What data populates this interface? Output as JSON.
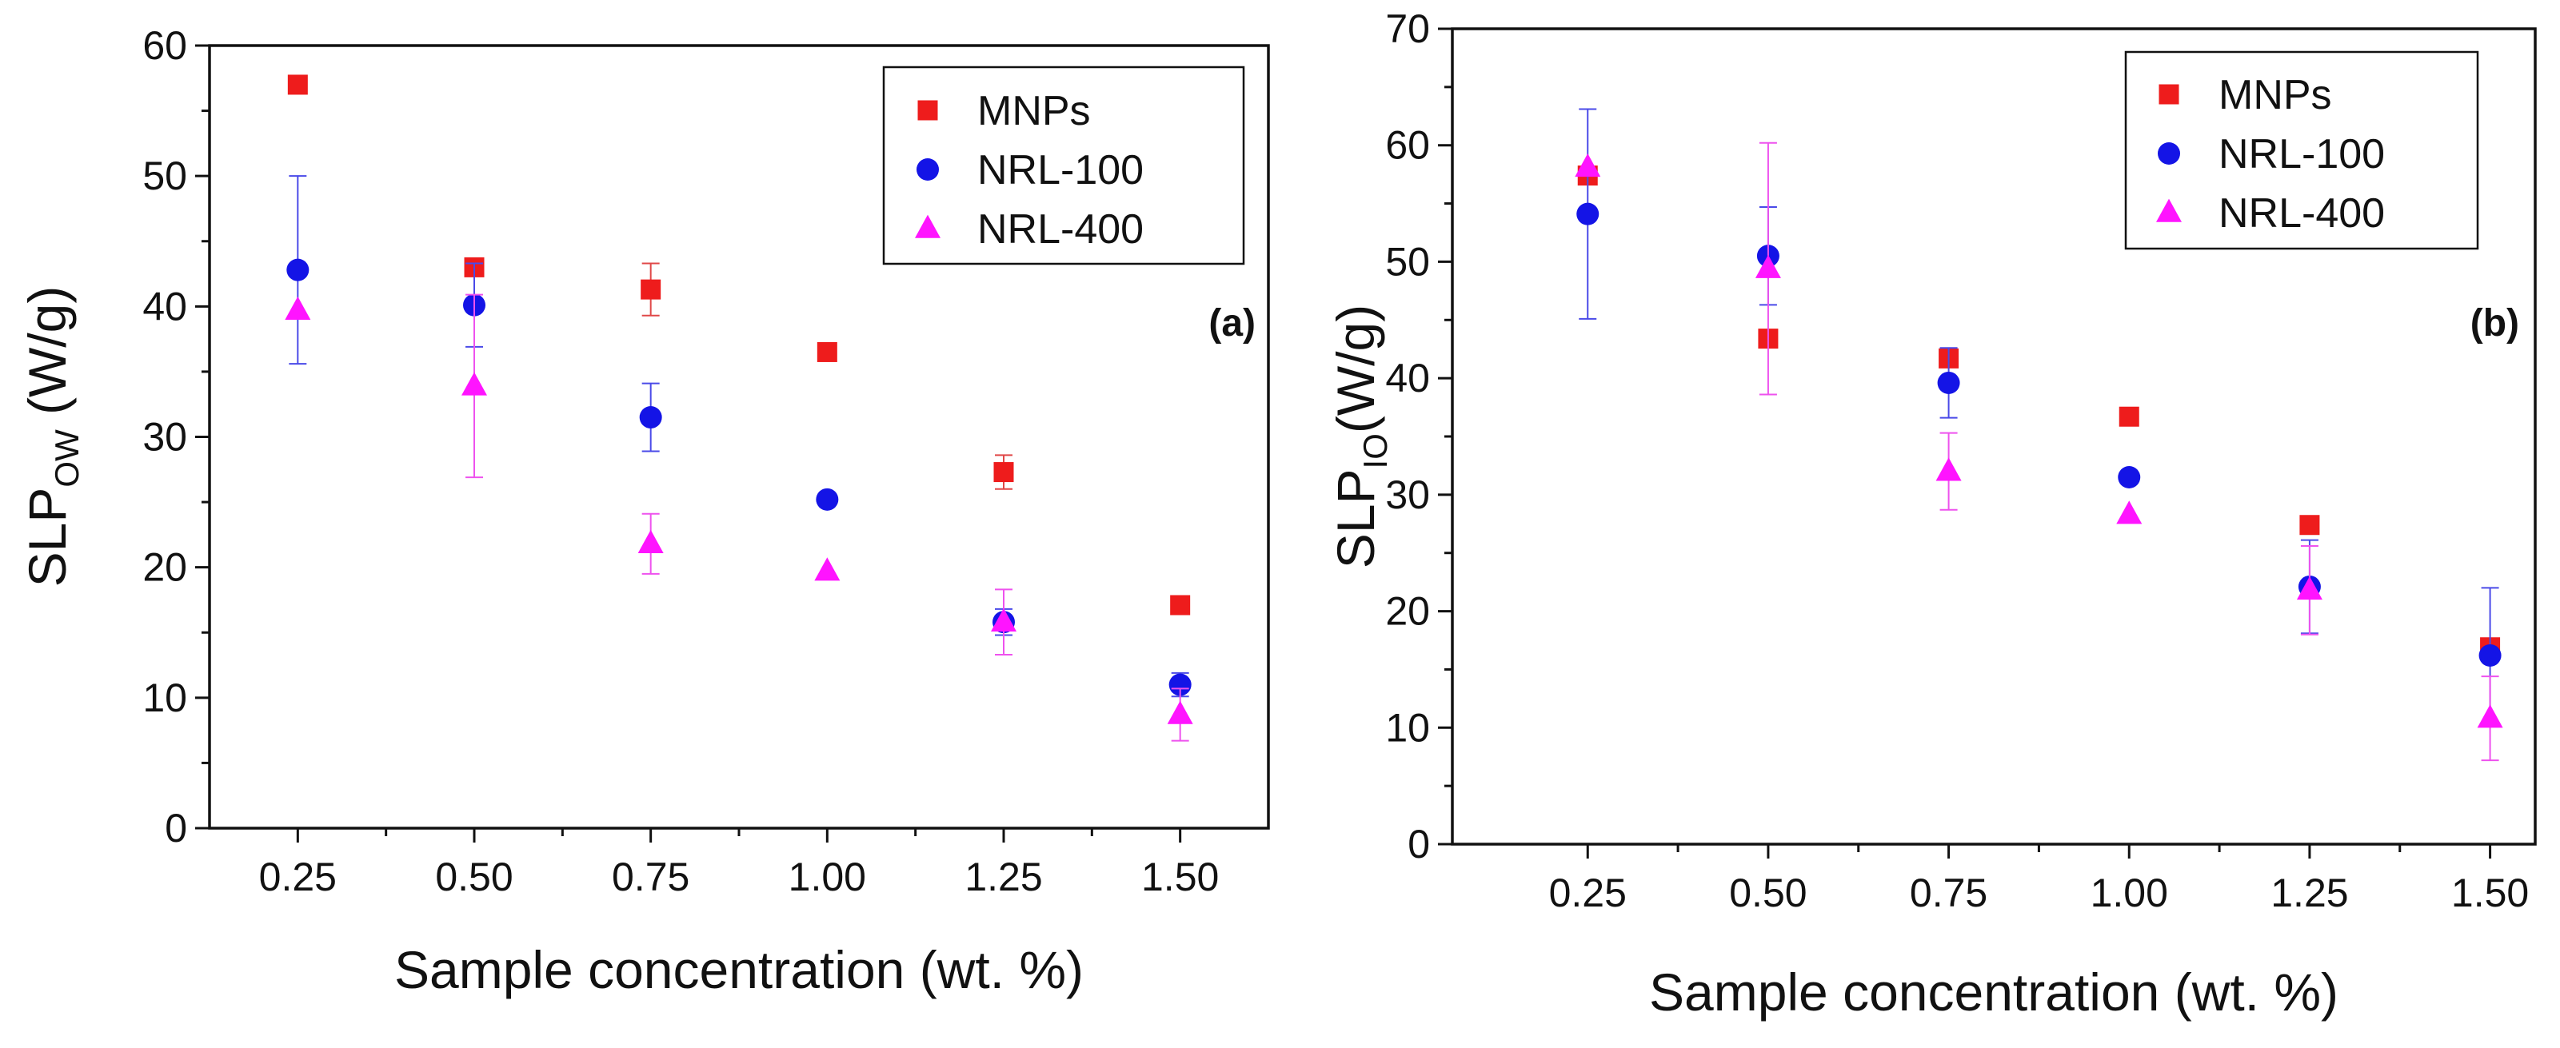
{
  "colors": {
    "MNPs": "#ee1c1c",
    "NRL-100": "#1414e6",
    "NRL-400": "#ff14ff",
    "errbar_MNPs": "#e04848",
    "errbar_NRL-100": "#4a4ae8",
    "errbar_NRL-400": "#ee52ee"
  },
  "chart_data": [
    {
      "type": "scatter",
      "panel_label": "(a)",
      "ylabel_main": "SLP",
      "ylabel_sub": "OW",
      "ylabel_unit": " (W/g)",
      "xlabel": "Sample concentration (wt. %)",
      "xlim": [
        0.125,
        1.625
      ],
      "ylim": [
        0,
        60
      ],
      "xticks": [
        0.25,
        0.5,
        0.75,
        1.0,
        1.25,
        1.5
      ],
      "xtick_labels": [
        "0.25",
        "0.50",
        "0.75",
        "1.00",
        "1.25",
        "1.50"
      ],
      "yticks": [
        0,
        10,
        20,
        30,
        40,
        50,
        60
      ],
      "ytick_labels": [
        "0",
        "10",
        "20",
        "30",
        "40",
        "50",
        "60"
      ],
      "x": [
        0.25,
        0.5,
        0.75,
        1.0,
        1.25,
        1.5
      ],
      "legend": [
        "MNPs",
        "NRL-100",
        "NRL-400"
      ],
      "legend_position": "top-right",
      "series": [
        {
          "name": "MNPs",
          "marker": "square",
          "values": [
            57.0,
            43.0,
            41.3,
            36.5,
            27.3,
            17.1
          ],
          "errors": [
            0,
            0,
            2.0,
            0,
            1.3,
            0
          ]
        },
        {
          "name": "NRL-100",
          "marker": "circle",
          "values": [
            42.8,
            40.1,
            31.5,
            25.2,
            15.8,
            11.0
          ],
          "errors": [
            7.2,
            3.2,
            2.6,
            0,
            1.0,
            0.9
          ]
        },
        {
          "name": "NRL-400",
          "marker": "triangle",
          "values": [
            39.7,
            33.9,
            21.8,
            19.7,
            15.8,
            8.7
          ],
          "errors": [
            0,
            7.0,
            2.3,
            0,
            2.5,
            2.0
          ]
        }
      ]
    },
    {
      "type": "scatter",
      "panel_label": "(b)",
      "ylabel_main": "SLP",
      "ylabel_sub": "IO",
      "ylabel_unit": "(W/g)",
      "xlabel": "Sample concentration (wt. %)",
      "xlim": [
        0.0625,
        1.5625
      ],
      "ylim": [
        0,
        70
      ],
      "xticks": [
        0.25,
        0.5,
        0.75,
        1.0,
        1.25,
        1.5
      ],
      "xtick_labels": [
        "0.25",
        "0.50",
        "0.75",
        "1.00",
        "1.25",
        "1.50"
      ],
      "yticks": [
        0,
        10,
        20,
        30,
        40,
        50,
        60,
        70
      ],
      "ytick_labels": [
        "0",
        "10",
        "20",
        "30",
        "40",
        "50",
        "60",
        "70"
      ],
      "x": [
        0.25,
        0.5,
        0.75,
        1.0,
        1.25,
        1.5
      ],
      "legend": [
        "MNPs",
        "NRL-100",
        "NRL-400"
      ],
      "legend_position": "top-right",
      "series": [
        {
          "name": "MNPs",
          "marker": "square",
          "values": [
            57.4,
            43.4,
            41.7,
            36.7,
            27.4,
            16.9
          ],
          "errors": [
            0,
            0,
            0.5,
            0,
            0,
            0
          ]
        },
        {
          "name": "NRL-100",
          "marker": "circle",
          "values": [
            54.1,
            50.5,
            39.6,
            31.5,
            22.1,
            16.2
          ],
          "errors": [
            9.0,
            4.2,
            3.0,
            0,
            4.0,
            5.8
          ]
        },
        {
          "name": "NRL-400",
          "marker": "triangle",
          "values": [
            58.1,
            49.4,
            32.0,
            28.3,
            21.8,
            10.8
          ],
          "errors": [
            0,
            10.8,
            3.3,
            0,
            3.8,
            3.6
          ]
        }
      ]
    }
  ]
}
